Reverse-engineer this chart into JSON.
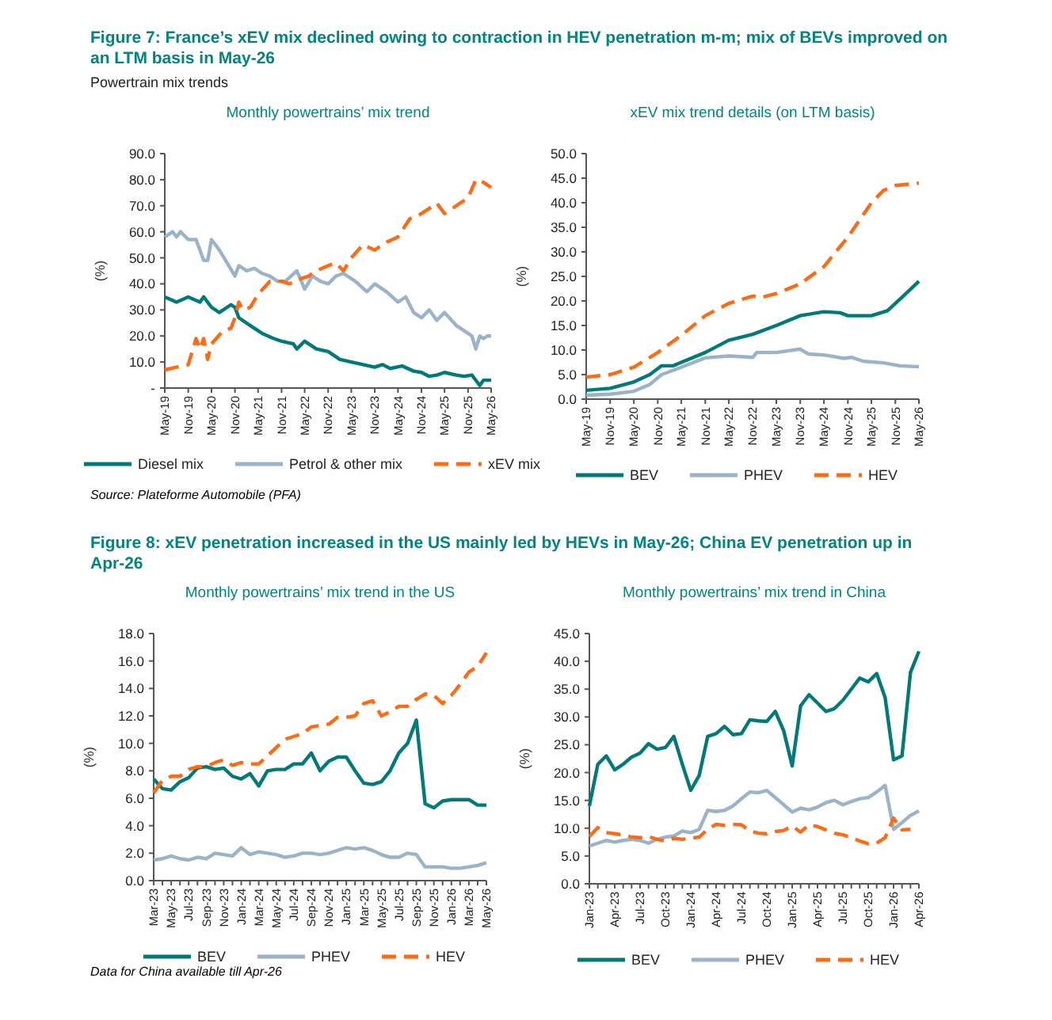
{
  "chart_data": [
    {
      "type": "line",
      "title": "Monthly powertrains’ mix trend",
      "ylabel": "(%)",
      "legend": "bottom",
      "annotations": [
        "Figure 7: France’s xEV mix declined owing to contraction in HEV penetration m-m; mix of BEVs improved on an LTM basis in May-26",
        "Powertrain mix trends",
        "Source: Plateforme Automobile (PFA)"
      ],
      "xlim": [
        "2019-05",
        "2026-05"
      ],
      "xticks": [
        {
          "value": "2019-05",
          "label": "May-19"
        },
        {
          "value": "2019-11",
          "label": "Nov-19"
        },
        {
          "value": "2020-05",
          "label": "May-20"
        },
        {
          "value": "2020-11",
          "label": "Nov-20"
        },
        {
          "value": "2021-05",
          "label": "May-21"
        },
        {
          "value": "2021-11",
          "label": "Nov-21"
        },
        {
          "value": "2022-05",
          "label": "May-22"
        },
        {
          "value": "2022-11",
          "label": "Nov-22"
        },
        {
          "value": "2023-05",
          "label": "May-23"
        },
        {
          "value": "2023-11",
          "label": "Nov-23"
        },
        {
          "value": "2024-05",
          "label": "May-24"
        },
        {
          "value": "2024-11",
          "label": "Nov-24"
        },
        {
          "value": "2025-05",
          "label": "May-25"
        },
        {
          "value": "2025-11",
          "label": "Nov-25"
        },
        {
          "value": "2026-05",
          "label": "May-26"
        }
      ],
      "ylim": [
        0,
        90
      ],
      "yticks": [
        {
          "value": 0,
          "label": "-"
        },
        {
          "value": 10,
          "label": "10.0"
        },
        {
          "value": 20,
          "label": "20.0"
        },
        {
          "value": 30,
          "label": "30.0"
        },
        {
          "value": 40,
          "label": "40.0"
        },
        {
          "value": 50,
          "label": "50.0"
        },
        {
          "value": 60,
          "label": "60.0"
        },
        {
          "value": 70,
          "label": "70.0"
        },
        {
          "value": 80,
          "label": "80.0"
        },
        {
          "value": 90,
          "label": "90.0"
        }
      ],
      "series": [
        {
          "name": "Diesel mix",
          "color": "#007a78",
          "line_style": "solid",
          "x": [
            "2019-05",
            "2019-08",
            "2019-11",
            "2020-02",
            "2020-03",
            "2020-05",
            "2020-07",
            "2020-10",
            "2020-11",
            "2020-12",
            "2021-03",
            "2021-06",
            "2021-09",
            "2021-11",
            "2022-02",
            "2022-03",
            "2022-05",
            "2022-08",
            "2022-11",
            "2023-02",
            "2023-05",
            "2023-08",
            "2023-11",
            "2024-01",
            "2024-03",
            "2024-06",
            "2024-09",
            "2024-11",
            "2025-01",
            "2025-03",
            "2025-05",
            "2025-08",
            "2025-10",
            "2025-12",
            "2026-02",
            "2026-03",
            "2026-05"
          ],
          "values": [
            35,
            33,
            35,
            33,
            35,
            31,
            29,
            32,
            31,
            27,
            24,
            21,
            19,
            18,
            17,
            15,
            18,
            15,
            14,
            11,
            10,
            9,
            8,
            9,
            7.5,
            8.5,
            6.5,
            6,
            4.5,
            5,
            6,
            5,
            4.5,
            5,
            1,
            3,
            3
          ]
        },
        {
          "name": "Petrol & other mix",
          "color": "#9ab3c9",
          "line_style": "solid",
          "x": [
            "2019-05",
            "2019-07",
            "2019-08",
            "2019-09",
            "2019-11",
            "2020-01",
            "2020-03",
            "2020-04",
            "2020-05",
            "2020-07",
            "2020-09",
            "2020-11",
            "2020-12",
            "2021-02",
            "2021-04",
            "2021-06",
            "2021-08",
            "2021-10",
            "2021-12",
            "2022-03",
            "2022-05",
            "2022-07",
            "2022-09",
            "2022-11",
            "2023-01",
            "2023-03",
            "2023-06",
            "2023-09",
            "2023-11",
            "2024-02",
            "2024-05",
            "2024-07",
            "2024-09",
            "2024-11",
            "2025-01",
            "2025-03",
            "2025-05",
            "2025-08",
            "2025-11",
            "2025-12",
            "2026-01",
            "2026-02",
            "2026-03",
            "2026-04",
            "2026-05"
          ],
          "values": [
            58,
            60,
            58,
            60,
            57,
            57,
            49,
            49,
            57,
            53,
            48,
            43,
            47,
            45,
            46,
            44,
            43,
            41,
            41,
            45,
            38,
            43,
            41,
            40,
            43,
            44,
            41,
            37,
            40,
            37,
            33,
            35,
            29,
            27,
            30,
            26,
            29,
            24,
            21,
            20,
            15,
            20,
            19,
            20,
            20
          ]
        },
        {
          "name": "xEV mix",
          "color": "#ff6a13",
          "line_style": "dashed",
          "x": [
            "2019-05",
            "2019-08",
            "2019-11",
            "2020-01",
            "2020-02",
            "2020-03",
            "2020-04",
            "2020-05",
            "2020-08",
            "2020-10",
            "2020-11",
            "2020-12",
            "2021-01",
            "2021-03",
            "2021-05",
            "2021-08",
            "2021-11",
            "2022-01",
            "2022-04",
            "2022-06",
            "2022-08",
            "2022-11",
            "2023-01",
            "2023-03",
            "2023-05",
            "2023-08",
            "2023-11",
            "2024-02",
            "2024-05",
            "2024-08",
            "2024-10",
            "2025-01",
            "2025-03",
            "2025-05",
            "2025-08",
            "2025-11",
            "2026-01",
            "2026-03",
            "2026-05"
          ],
          "values": [
            7,
            8,
            9,
            19,
            15,
            19,
            11,
            17,
            22,
            23,
            27,
            33,
            30,
            31,
            36,
            41,
            41,
            40,
            42,
            43,
            45,
            47,
            48,
            45,
            50,
            55,
            53,
            56,
            58,
            65,
            66,
            69,
            71,
            67,
            70,
            73,
            80,
            79,
            77
          ]
        }
      ]
    },
    {
      "type": "line",
      "title": "xEV mix trend details (on LTM basis)",
      "ylabel": "(%)",
      "legend": "bottom",
      "xlim": [
        "2019-05",
        "2026-05"
      ],
      "xticks": [
        {
          "value": "2019-05",
          "label": "May-19"
        },
        {
          "value": "2019-11",
          "label": "Nov-19"
        },
        {
          "value": "2020-05",
          "label": "May-20"
        },
        {
          "value": "2020-11",
          "label": "Nov-20"
        },
        {
          "value": "2021-05",
          "label": "May-21"
        },
        {
          "value": "2021-11",
          "label": "Nov-21"
        },
        {
          "value": "2022-05",
          "label": "May-22"
        },
        {
          "value": "2022-11",
          "label": "Nov-22"
        },
        {
          "value": "2023-05",
          "label": "May-23"
        },
        {
          "value": "2023-11",
          "label": "Nov-23"
        },
        {
          "value": "2024-05",
          "label": "May-24"
        },
        {
          "value": "2024-11",
          "label": "Nov-24"
        },
        {
          "value": "2025-05",
          "label": "May-25"
        },
        {
          "value": "2025-11",
          "label": "Nov-25"
        },
        {
          "value": "2026-05",
          "label": "May-26"
        }
      ],
      "ylim": [
        0,
        50
      ],
      "yticks": [
        {
          "value": 0,
          "label": "0.0"
        },
        {
          "value": 5,
          "label": "5.0"
        },
        {
          "value": 10,
          "label": "10.0"
        },
        {
          "value": 15,
          "label": "15.0"
        },
        {
          "value": 20,
          "label": "20.0"
        },
        {
          "value": 25,
          "label": "25.0"
        },
        {
          "value": 30,
          "label": "30.0"
        },
        {
          "value": 35,
          "label": "35.0"
        },
        {
          "value": 40,
          "label": "40.0"
        },
        {
          "value": 45,
          "label": "45.0"
        },
        {
          "value": 50,
          "label": "50.0"
        }
      ],
      "series": [
        {
          "name": "BEV",
          "color": "#007a78",
          "line_style": "solid",
          "x": [
            "2019-05",
            "2019-11",
            "2020-05",
            "2020-09",
            "2020-12",
            "2021-03",
            "2021-05",
            "2021-11",
            "2022-05",
            "2022-11",
            "2023-05",
            "2023-11",
            "2024-05",
            "2024-09",
            "2024-11",
            "2025-05",
            "2025-09",
            "2026-01",
            "2026-05"
          ],
          "values": [
            1.8,
            2.2,
            3.5,
            5,
            6.8,
            6.8,
            7.5,
            9.5,
            12,
            13.2,
            15,
            17,
            17.8,
            17.6,
            17,
            17,
            18,
            21,
            24
          ]
        },
        {
          "name": "PHEV",
          "color": "#9ab3c9",
          "line_style": "solid",
          "x": [
            "2019-05",
            "2019-11",
            "2020-05",
            "2020-09",
            "2020-12",
            "2021-05",
            "2021-11",
            "2022-05",
            "2022-11",
            "2022-12",
            "2023-05",
            "2023-11",
            "2024-01",
            "2024-05",
            "2024-10",
            "2024-12",
            "2025-03",
            "2025-08",
            "2025-12",
            "2026-05"
          ],
          "values": [
            0.8,
            1,
            1.6,
            3,
            5,
            6.5,
            8.4,
            8.8,
            8.5,
            9.5,
            9.5,
            10.2,
            9.2,
            9,
            8.3,
            8.5,
            7.7,
            7.4,
            6.8,
            6.6
          ]
        },
        {
          "name": "HEV",
          "color": "#ff6a13",
          "line_style": "dashed",
          "x": [
            "2019-05",
            "2019-11",
            "2020-05",
            "2020-11",
            "2021-05",
            "2021-11",
            "2022-05",
            "2022-11",
            "2023-01",
            "2023-05",
            "2023-11",
            "2024-05",
            "2024-11",
            "2025-05",
            "2025-08",
            "2025-11",
            "2026-05"
          ],
          "values": [
            4.5,
            5,
            6.5,
            9.5,
            13,
            17,
            19.5,
            21,
            20.7,
            21.5,
            23.5,
            27,
            33,
            40,
            42.5,
            43.5,
            44
          ]
        }
      ]
    },
    {
      "type": "line",
      "title": "Monthly powertrains’ mix trend in the US",
      "ylabel": "(%)",
      "legend": "bottom",
      "annotations": [
        "Figure 8: xEV penetration increased in the US mainly led by HEVs in May-26; China EV penetration up in Apr-26",
        "Data for China available till Apr-26"
      ],
      "categories": [
        "Mar-23",
        null,
        "May-23",
        null,
        "Jul-23",
        null,
        "Sep-23",
        null,
        "Nov-23",
        null,
        "Jan-24",
        null,
        "Mar-24",
        null,
        "May-24",
        null,
        "Jul-24",
        null,
        "Sep-24",
        null,
        "Nov-24",
        null,
        "Jan-25",
        null,
        "Mar-25",
        null,
        "May-25",
        null,
        "Jul-25",
        null,
        "Sep-25",
        null,
        "Nov-25",
        null,
        "Jan-26",
        null,
        "Mar-26",
        null,
        "May-26"
      ],
      "ylim": [
        0,
        18
      ],
      "yticks": [
        {
          "value": 0,
          "label": "0.0"
        },
        {
          "value": 2,
          "label": "2.0"
        },
        {
          "value": 4,
          "label": "4.0"
        },
        {
          "value": 6,
          "label": "6.0"
        },
        {
          "value": 8,
          "label": "8.0"
        },
        {
          "value": 10,
          "label": "10.0"
        },
        {
          "value": 12,
          "label": "12.0"
        },
        {
          "value": 14,
          "label": "14.0"
        },
        {
          "value": 16,
          "label": "16.0"
        },
        {
          "value": 18,
          "label": "18.0"
        }
      ],
      "series": [
        {
          "name": "BEV",
          "color": "#007a78",
          "line_style": "solid",
          "values": [
            7.4,
            6.7,
            6.6,
            7.2,
            7.5,
            8.2,
            8.3,
            8.1,
            8.2,
            7.6,
            7.4,
            7.8,
            6.9,
            8.0,
            8.1,
            8.1,
            8.5,
            8.5,
            9.3,
            8.0,
            8.7,
            9.0,
            9.0,
            8.0,
            7.1,
            7.0,
            7.2,
            8.0,
            9.3,
            10.0,
            11.7,
            5.6,
            5.3,
            5.8,
            5.9,
            5.9,
            5.9,
            5.5,
            5.5
          ]
        },
        {
          "name": "PHEV",
          "color": "#9ab3c9",
          "line_style": "solid",
          "values": [
            1.5,
            1.6,
            1.8,
            1.6,
            1.5,
            1.7,
            1.6,
            2.0,
            1.9,
            1.8,
            2.4,
            1.9,
            2.1,
            2.0,
            1.9,
            1.7,
            1.8,
            2.0,
            2.0,
            1.9,
            2.0,
            2.2,
            2.4,
            2.3,
            2.4,
            2.2,
            1.9,
            1.7,
            1.7,
            2.0,
            1.9,
            1.0,
            1.0,
            1.0,
            0.9,
            0.9,
            1.0,
            1.1,
            1.3
          ]
        },
        {
          "name": "HEV",
          "color": "#ff6a13",
          "line_style": "dashed",
          "values": [
            6.4,
            7.3,
            7.6,
            7.6,
            8.1,
            8.3,
            8.3,
            8.6,
            8.8,
            8.4,
            8.6,
            8.5,
            8.5,
            9.1,
            9.7,
            10.3,
            10.5,
            10.7,
            11.2,
            11.3,
            11.4,
            11.9,
            11.9,
            12.0,
            12.9,
            13.1,
            12.0,
            12.3,
            12.7,
            12.7,
            13.2,
            13.6,
            13.5,
            12.9,
            13.5,
            14.3,
            15.2,
            15.6,
            16.6
          ]
        }
      ]
    },
    {
      "type": "line",
      "title": "Monthly powertrains’ mix trend in China",
      "ylabel": "(%)",
      "legend": "bottom",
      "categories": [
        "Jan-23",
        null,
        null,
        "Apr-23",
        null,
        null,
        "Jul-23",
        null,
        null,
        "Oct-23",
        null,
        null,
        "Jan-24",
        null,
        null,
        "Apr-24",
        null,
        null,
        "Jul-24",
        null,
        null,
        "Oct-24",
        null,
        null,
        "Jan-25",
        null,
        null,
        "Apr-25",
        null,
        null,
        "Jul-25",
        null,
        null,
        "Oct-25",
        null,
        null,
        "Jan-26",
        null,
        null,
        "Apr-26"
      ],
      "ylim": [
        0,
        45
      ],
      "yticks": [
        {
          "value": 0,
          "label": "0.0"
        },
        {
          "value": 5,
          "label": "5.0"
        },
        {
          "value": 10,
          "label": "10.0"
        },
        {
          "value": 15,
          "label": "15.0"
        },
        {
          "value": 20,
          "label": "20.0"
        },
        {
          "value": 25,
          "label": "25.0"
        },
        {
          "value": 30,
          "label": "30.0"
        },
        {
          "value": 35,
          "label": "35.0"
        },
        {
          "value": 40,
          "label": "40.0"
        },
        {
          "value": 45,
          "label": "45.0"
        }
      ],
      "series": [
        {
          "name": "BEV",
          "color": "#007a78",
          "line_style": "solid",
          "values": [
            14,
            21.5,
            23,
            20.5,
            21.5,
            22.8,
            23.5,
            25.2,
            24.2,
            24.5,
            26.5,
            21.5,
            16.8,
            19.5,
            26.5,
            27,
            28.3,
            26.8,
            27,
            29.5,
            29.3,
            29.2,
            31,
            27.5,
            21.2,
            32,
            34,
            32.5,
            31,
            31.5,
            33,
            35,
            37,
            36.3,
            37.8,
            33.5,
            22.3,
            23,
            38,
            41.8
          ]
        },
        {
          "name": "PHEV",
          "color": "#9ab3c9",
          "line_style": "solid",
          "values": [
            6.8,
            7.3,
            7.8,
            7.5,
            7.8,
            8.0,
            7.8,
            7.3,
            8.0,
            8.4,
            8.6,
            9.5,
            9.2,
            9.8,
            13.2,
            13.0,
            13.2,
            14.0,
            15.3,
            16.5,
            16.4,
            16.8,
            15.5,
            14.2,
            12.9,
            13.6,
            13.3,
            13.8,
            14.6,
            15.0,
            14.2,
            14.8,
            15.3,
            15.5,
            16.5,
            17.7,
            9.8,
            11.0,
            12.3,
            13.1
          ]
        },
        {
          "name": "HEV",
          "color": "#ff6a13",
          "line_style": "dashed",
          "values": [
            8.5,
            10.1,
            9.2,
            9.0,
            8.8,
            8.4,
            8.3,
            8.5,
            8.0,
            7.7,
            8.2,
            8.0,
            8.2,
            8.4,
            9.8,
            10.7,
            10.5,
            10.7,
            10.6,
            9.5,
            9.1,
            9.0,
            9.4,
            9.6,
            10.4,
            9.3,
            10.6,
            10.3,
            9.7,
            9.1,
            8.8,
            8.3,
            7.7,
            7.2,
            7.3,
            8.3,
            11.8,
            9.7,
            9.8,
            null
          ]
        }
      ]
    }
  ]
}
